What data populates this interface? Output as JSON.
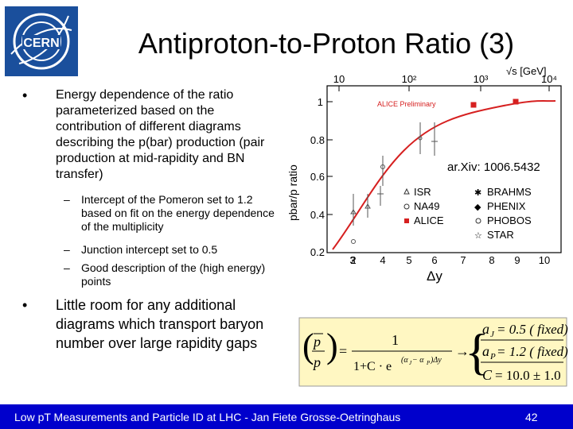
{
  "slide": {
    "logo_text": "CERN",
    "title": "Antiproton-to-Proton Ratio (3)",
    "bullets": [
      {
        "marker": "•",
        "text": "Energy dependence of the ratio parameterized based on the contribution of different diagrams describing the p(bar) production (pair production at mid-rapidity and BN transfer)",
        "subs": [
          {
            "marker": "–",
            "text": "Intercept of the Pomeron set to 1.2 based on fit on the energy dependence of the multiplicity"
          },
          {
            "marker": "–",
            "text": "Junction intercept set to 0.5"
          },
          {
            "marker": "–",
            "text": "Good description of the (high energy) points"
          }
        ]
      },
      {
        "marker": "•",
        "text": "Little room for any additional diagrams which transport baryon number over large rapidity gaps"
      }
    ],
    "figure": {
      "ylabel": "pbar/p ratio",
      "top_axis_label": "√s [GeV]",
      "top_ticks": [
        "10",
        "10²",
        "10³",
        "10⁴"
      ],
      "bottom_ticks": [
        "2",
        "3",
        "4",
        "5",
        "6",
        "7",
        "8",
        "9",
        "10"
      ],
      "y_ticks": [
        "0.2",
        "0.4",
        "0.6",
        "0.8",
        "1"
      ],
      "preliminary": "ALICE Preliminary",
      "legend": [
        "ISR",
        "NA49",
        "ALICE",
        "BRAHMS",
        "PHENIX",
        "PHOBOS",
        "STAR"
      ],
      "arxiv": "ar.Xiv: 1006.5432",
      "xlabel": "Δy"
    },
    "formula": {
      "lhs_num": "p",
      "lhs_den": "p",
      "frac_num": "1",
      "frac_den_main": "1+C · e",
      "frac_den_exp": "(α",
      "frac_den_exp_sub1": "J",
      "frac_den_exp_mid": " − α",
      "frac_den_exp_sub2": "P",
      "frac_den_exp_end": ")Δy",
      "params": [
        {
          "lhs": "a",
          "sub": "J",
          "rhs": "= 0.5  ( fixed)"
        },
        {
          "lhs": "a",
          "sub": "P",
          "rhs": "= 1.2  ( fixed)"
        },
        {
          "lhs": "C",
          "sub": "",
          "rhs": "= 10.0 ± 1.0"
        }
      ]
    },
    "footer": {
      "text": "Low pT Measurements and Particle ID at LHC - Jan Fiete Grosse-Oetringhaus",
      "page": "42"
    },
    "colors": {
      "footer_bg": "#0000cc",
      "logo_blue": "#1a4f9c",
      "curve": "#d62020",
      "formula_bg": "#fff7c2"
    }
  }
}
